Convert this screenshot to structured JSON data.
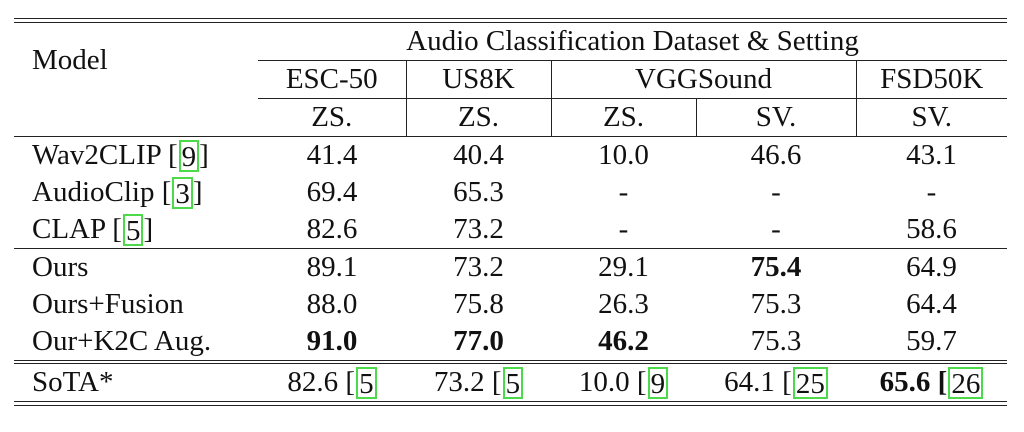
{
  "table": {
    "header": {
      "group_label": "Audio Classification Dataset & Setting",
      "model_label": "Model",
      "datasets": [
        "ESC-50",
        "US8K",
        "VGGSound",
        "FSD50K"
      ],
      "settings": [
        "ZS.",
        "ZS.",
        "ZS.",
        "SV.",
        "SV."
      ]
    },
    "rows": [
      {
        "model": "Wav2CLIP [",
        "cite": "9",
        "close": "]",
        "values": [
          "41.4",
          "40.4",
          "10.0",
          "46.6",
          "43.1"
        ]
      },
      {
        "model": "AudioClip [",
        "cite": "3",
        "close": "]",
        "values": [
          "69.4",
          "65.3",
          "-",
          "-",
          "-"
        ]
      },
      {
        "model": "CLAP [",
        "cite": "5",
        "close": "]",
        "values": [
          "82.6",
          "73.2",
          "-",
          "-",
          "58.6"
        ]
      },
      {
        "model": "Ours",
        "values": [
          "89.1",
          "73.2",
          "29.1",
          "75.4",
          "64.9"
        ]
      },
      {
        "model": "Ours+Fusion",
        "values": [
          "88.0",
          "75.8",
          "26.3",
          "75.3",
          "64.4"
        ]
      },
      {
        "model": "Our+K2C Aug.",
        "values": [
          "91.0",
          "77.0",
          "46.2",
          "75.3",
          "59.7"
        ]
      },
      {
        "model": "SoTA*",
        "values": [
          "82.6 [",
          "73.2 [",
          "10.0 [",
          "64.1 [",
          "65.6 ["
        ],
        "cites": [
          "5",
          "5",
          "9",
          "25",
          "26"
        ]
      }
    ]
  }
}
